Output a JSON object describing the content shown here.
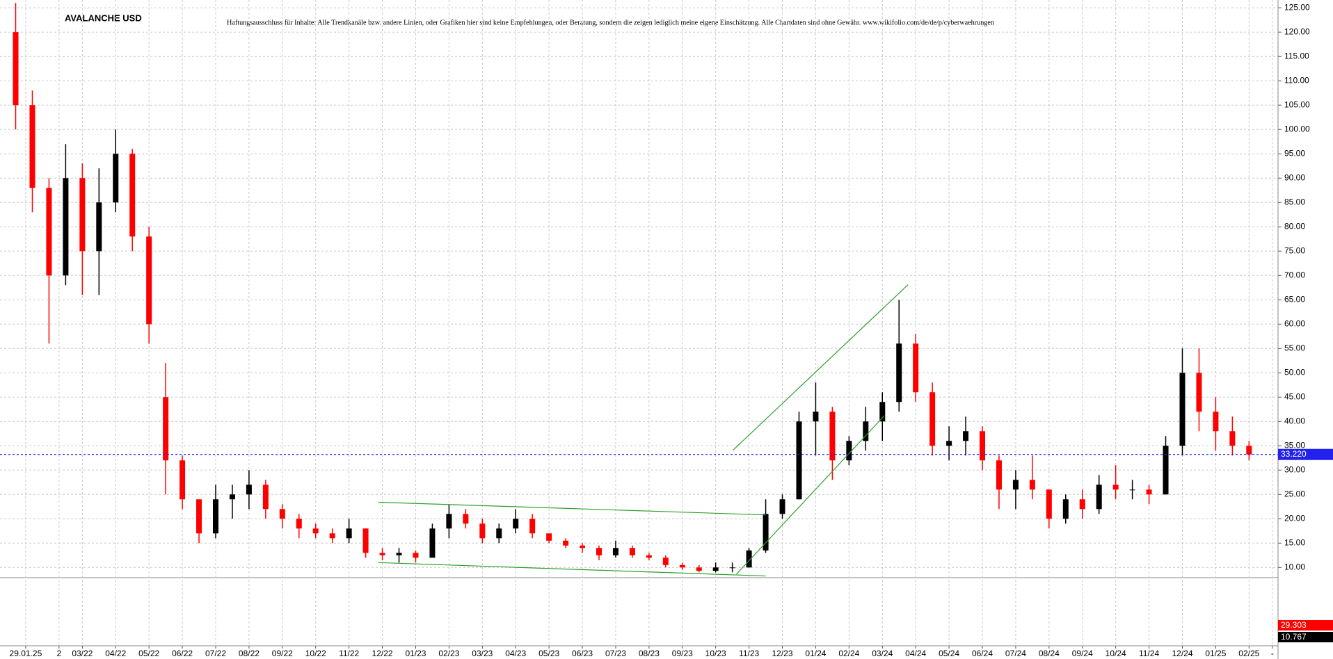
{
  "chart_data": {
    "type": "candlestick",
    "title": "AVALANCHE USD",
    "subtitle": "Haftungsausschluss für Inhalte: Alle Trendkanäle bzw. andere Linien, oder Grafiken hier sind keine Empfehlungen, oder Beratung, sondern die zeigen lediglich meine eigene Einschätzung. Alle Chartdaten sind ohne Gewähr.  www.wikifolio.com/de/de/p/cyberwaehrungen",
    "up_color": "#000000",
    "down_color": "#ff0000",
    "grid": true,
    "candles": {
      "x": [
        0,
        0.5,
        1,
        1.5,
        2,
        2.5,
        3,
        3.5,
        4,
        4.5,
        5,
        5.5,
        6,
        6.5,
        7,
        7.5,
        8,
        8.5,
        9,
        9.5,
        10,
        10.5,
        11,
        11.5,
        12,
        12.5,
        13,
        13.5,
        14,
        14.5,
        15,
        15.5,
        16,
        16.5,
        17,
        17.5,
        18,
        18.5,
        19,
        19.5,
        20,
        20.5,
        21,
        21.5,
        22,
        22.5,
        23,
        23.5,
        24,
        24.5,
        25,
        25.5,
        26,
        26.5,
        27,
        27.5,
        28,
        28.5,
        29,
        29.5,
        30,
        30.5,
        31,
        31.5,
        32,
        32.5,
        33,
        33.5,
        34,
        34.5,
        35,
        35.5,
        36,
        36.5,
        37
      ],
      "open": [
        120,
        105,
        88,
        70,
        90,
        75,
        85,
        95,
        78,
        45,
        32,
        24,
        17,
        24,
        25,
        27,
        22,
        20,
        18,
        17,
        16,
        18,
        13,
        12.5,
        13,
        12,
        18,
        21,
        19,
        16,
        18,
        20,
        17,
        15.5,
        14.5,
        14,
        12.5,
        14,
        12.5,
        12,
        10.5,
        10,
        9.3,
        10,
        10,
        13.5,
        21,
        24,
        40,
        42,
        32,
        36,
        40,
        44,
        56,
        46,
        35,
        36,
        38,
        32,
        26,
        28,
        26,
        20,
        24,
        22,
        27,
        26,
        26,
        25,
        35,
        50,
        42,
        38,
        35
      ],
      "high": [
        126,
        108,
        90,
        97,
        93,
        92,
        100,
        96,
        80,
        52,
        33,
        24,
        27,
        27,
        30,
        28,
        23,
        21,
        19,
        18,
        20,
        18,
        14,
        14,
        13.5,
        19,
        23,
        22,
        20,
        19,
        22,
        21,
        17,
        16,
        15,
        14.5,
        15.5,
        14.5,
        13,
        12.5,
        11,
        10.5,
        11,
        11,
        14,
        24,
        25,
        42,
        48,
        43,
        37,
        43,
        46,
        65,
        58,
        48,
        39,
        41,
        39,
        33,
        30,
        33,
        26,
        25,
        26,
        29,
        31,
        28,
        27,
        37,
        55,
        55,
        45,
        41,
        36
      ],
      "low": [
        100,
        83,
        56,
        68,
        66,
        66,
        83,
        75,
        56,
        25,
        22,
        15,
        16,
        20,
        22,
        20,
        18,
        16,
        16,
        15,
        15,
        12,
        11.5,
        11,
        11,
        12,
        16,
        18,
        15,
        15,
        17,
        16,
        15,
        14,
        13,
        11.5,
        12,
        12,
        11.5,
        10,
        9.5,
        9,
        9,
        9,
        10,
        13,
        20,
        24,
        33,
        28,
        31,
        34,
        36,
        42,
        44,
        33,
        32,
        33,
        30,
        22,
        22,
        24,
        18,
        19,
        20,
        21,
        24,
        24,
        23,
        25,
        33,
        38,
        34,
        33,
        32
      ],
      "close": [
        105,
        88,
        70,
        90,
        75,
        85,
        95,
        78,
        60,
        32,
        24,
        17,
        24,
        25,
        27,
        22,
        20,
        18,
        17,
        16,
        18,
        13,
        12.5,
        13,
        12,
        18,
        21,
        19,
        16,
        18,
        20,
        17,
        15.5,
        14.5,
        14,
        12.5,
        14,
        12.5,
        12,
        10.5,
        10,
        9.3,
        10,
        10,
        13.5,
        21,
        24,
        40,
        42,
        32,
        36,
        40,
        44,
        56,
        46,
        35,
        36,
        38,
        32,
        26,
        28,
        26,
        20,
        24,
        22,
        27,
        26,
        26,
        25,
        35,
        50,
        42,
        38,
        35,
        33.2
      ]
    },
    "trend_lines": {
      "color": "#2ca02c",
      "lines": [
        [
          10.88,
          23.4,
          22.5,
          20.8
        ],
        [
          10.88,
          11.0,
          22.5,
          8.25
        ],
        [
          21.52,
          34.1,
          26.77,
          68.1
        ],
        [
          21.62,
          8.6,
          26.06,
          41.2
        ]
      ]
    },
    "price_line": {
      "value": 33.22,
      "label": "33.220",
      "color": "#2222ee"
    },
    "lower_pane_labels": [
      {
        "value": 29.303,
        "color": "#ff0000"
      },
      {
        "value": 10.767,
        "color": "#000000"
      }
    ],
    "xlim": [
      -0.47,
      37.87
    ],
    "ylim": [
      7.9,
      126.6
    ],
    "xticks": [
      {
        "value": 0.3,
        "label": "29.01.25"
      },
      {
        "value": 1.3,
        "label": "2"
      },
      {
        "value": 2,
        "label": "03/22"
      },
      {
        "value": 3,
        "label": "04/22"
      },
      {
        "value": 4,
        "label": "05/22"
      },
      {
        "value": 5,
        "label": "06/22"
      },
      {
        "value": 6,
        "label": "07/22"
      },
      {
        "value": 7,
        "label": "08/22"
      },
      {
        "value": 8,
        "label": "09/22"
      },
      {
        "value": 9,
        "label": "10/22"
      },
      {
        "value": 10,
        "label": "11/22"
      },
      {
        "value": 11,
        "label": "12/22"
      },
      {
        "value": 12,
        "label": "01/23"
      },
      {
        "value": 13,
        "label": "02/23"
      },
      {
        "value": 14,
        "label": "03/23"
      },
      {
        "value": 15,
        "label": "04/23"
      },
      {
        "value": 16,
        "label": "05/23"
      },
      {
        "value": 17,
        "label": "06/23"
      },
      {
        "value": 18,
        "label": "07/23"
      },
      {
        "value": 19,
        "label": "08/23"
      },
      {
        "value": 20,
        "label": "09/23"
      },
      {
        "value": 21,
        "label": "10/23"
      },
      {
        "value": 22,
        "label": "11/23"
      },
      {
        "value": 23,
        "label": "12/23"
      },
      {
        "value": 24,
        "label": "01/24"
      },
      {
        "value": 25,
        "label": "02/24"
      },
      {
        "value": 26,
        "label": "03/24"
      },
      {
        "value": 27,
        "label": "04/24"
      },
      {
        "value": 28,
        "label": "05/24"
      },
      {
        "value": 29,
        "label": "06/24"
      },
      {
        "value": 30,
        "label": "07/24"
      },
      {
        "value": 31,
        "label": "08/24"
      },
      {
        "value": 32,
        "label": "09/24"
      },
      {
        "value": 33,
        "label": "10/24"
      },
      {
        "value": 34,
        "label": "11/24"
      },
      {
        "value": 35,
        "label": "12/24"
      },
      {
        "value": 36,
        "label": "01/25"
      },
      {
        "value": 37,
        "label": "02/25"
      },
      {
        "value": 37.7,
        "label": "-"
      }
    ],
    "yticks": [
      {
        "value": 10,
        "label": "10.00"
      },
      {
        "value": 15,
        "label": "15.00"
      },
      {
        "value": 20,
        "label": "20.00"
      },
      {
        "value": 25,
        "label": "25.00"
      },
      {
        "value": 30,
        "label": "30.00"
      },
      {
        "value": 35,
        "label": "35.00"
      },
      {
        "value": 40,
        "label": "40.00"
      },
      {
        "value": 45,
        "label": "45.00"
      },
      {
        "value": 50,
        "label": "50.00"
      },
      {
        "value": 55,
        "label": "55.00"
      },
      {
        "value": 60,
        "label": "60.00"
      },
      {
        "value": 65,
        "label": "65.00"
      },
      {
        "value": 70,
        "label": "70.00"
      },
      {
        "value": 75,
        "label": "75.00"
      },
      {
        "value": 80,
        "label": "80.00"
      },
      {
        "value": 85,
        "label": "85.00"
      },
      {
        "value": 90,
        "label": "90.00"
      },
      {
        "value": 95,
        "label": "95.00"
      },
      {
        "value": 100,
        "label": "100.00"
      },
      {
        "value": 105,
        "label": "105.00"
      },
      {
        "value": 110,
        "label": "110.00"
      },
      {
        "value": 115,
        "label": "115.00"
      },
      {
        "value": 120,
        "label": "120.00"
      },
      {
        "value": 125,
        "label": "125.00"
      }
    ]
  }
}
